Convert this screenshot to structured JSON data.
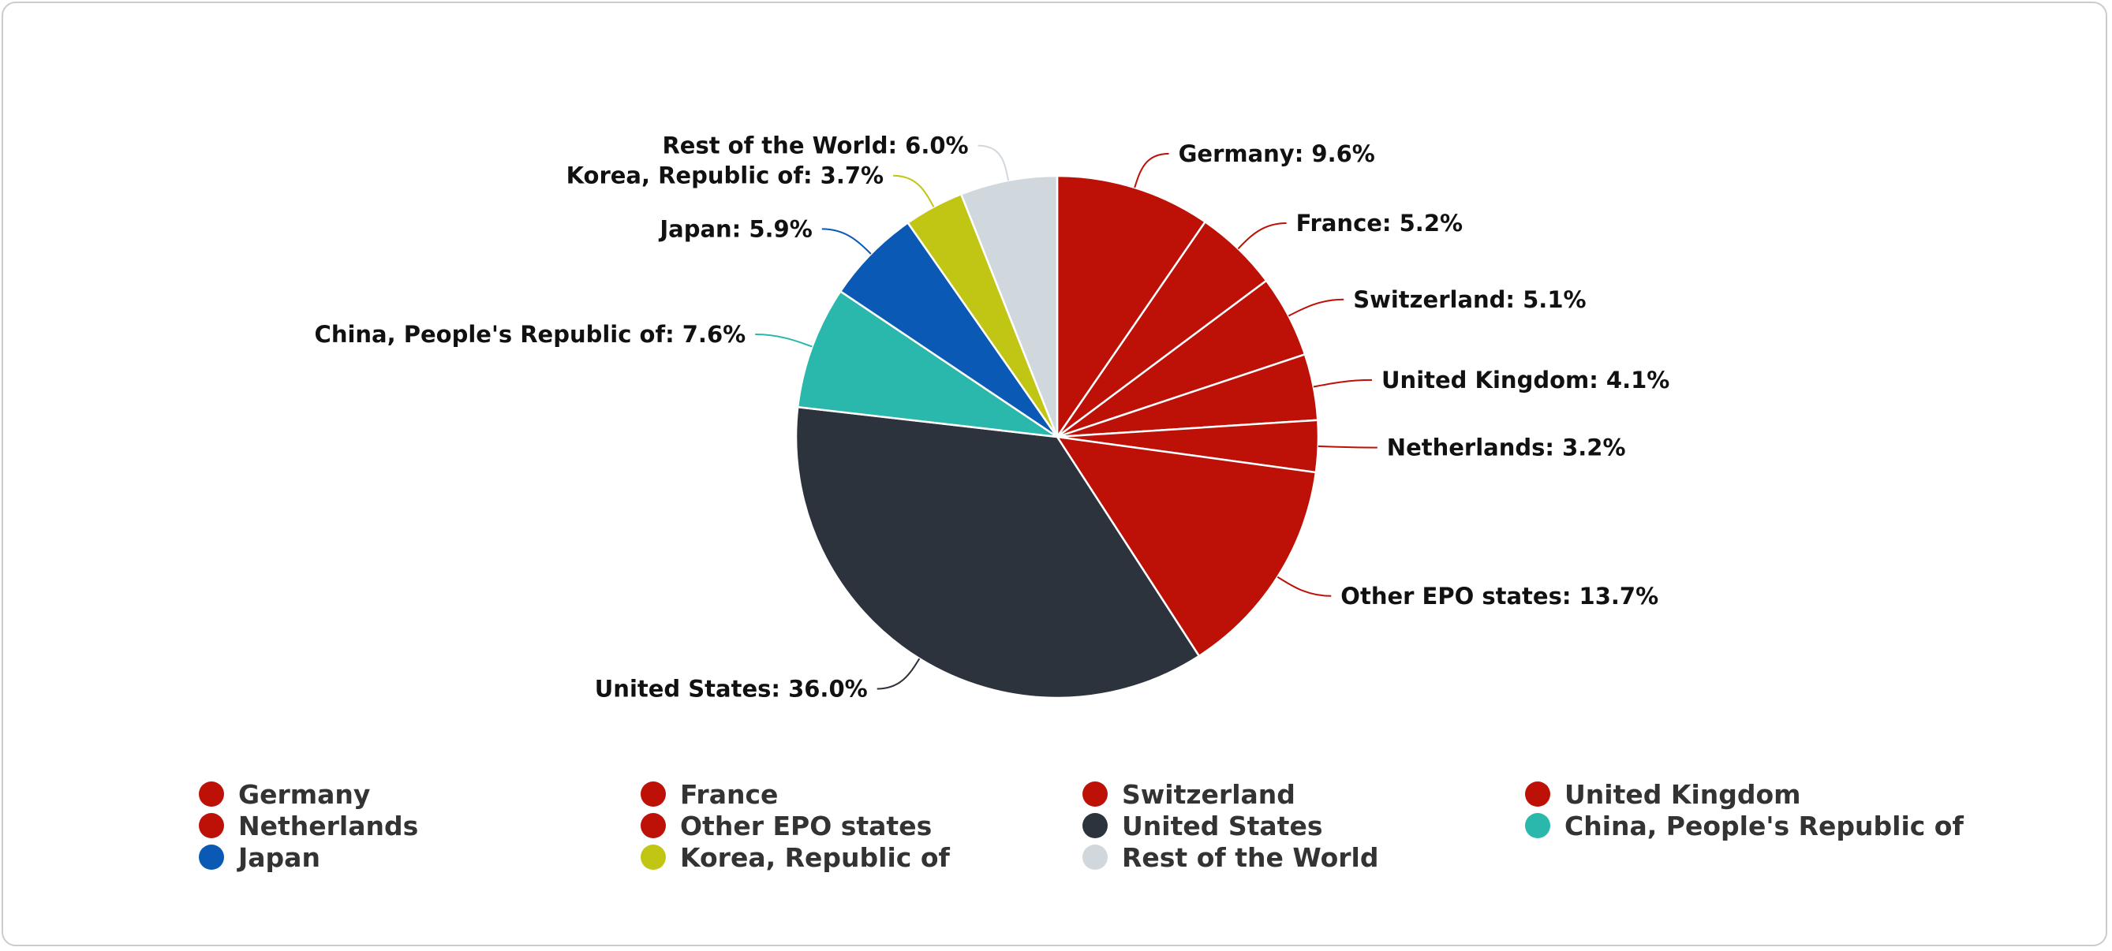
{
  "chart_data": {
    "type": "pie",
    "title": "",
    "categories": [
      "Germany",
      "France",
      "Switzerland",
      "United Kingdom",
      "Netherlands",
      "Other EPO states",
      "United States",
      "China, People's Republic of",
      "Japan",
      "Korea, Republic of",
      "Rest of the World"
    ],
    "values": [
      9.6,
      5.2,
      5.1,
      4.1,
      3.2,
      13.7,
      36.0,
      7.6,
      5.9,
      3.7,
      6.0
    ],
    "colors": [
      "#bd1108",
      "#bd1108",
      "#bd1108",
      "#bd1108",
      "#bd1108",
      "#bd1108",
      "#2d333c",
      "#2bb8ac",
      "#0a5ab5",
      "#c0c613",
      "#d0d8de"
    ],
    "labels": [
      "Germany: 9.6%",
      "France: 5.2%",
      "Switzerland: 5.1%",
      "United Kingdom: 4.1%",
      "Netherlands: 3.2%",
      "Other EPO states: 13.7%",
      "United States: 36.0%",
      "China, People's Republic of: 7.6%",
      "Japan: 5.9%",
      "Korea, Republic of: 3.7%",
      "Rest of the World: 6.0%"
    ],
    "start_angle": "12 o'clock",
    "direction": "clockwise",
    "legend": {
      "position": "bottom",
      "columns": 4,
      "items": [
        "Germany",
        "France",
        "Switzerland",
        "United Kingdom",
        "Netherlands",
        "Other EPO states",
        "United States",
        "China, People's Republic of",
        "Japan",
        "Korea, Republic of",
        "Rest of the World"
      ]
    }
  }
}
